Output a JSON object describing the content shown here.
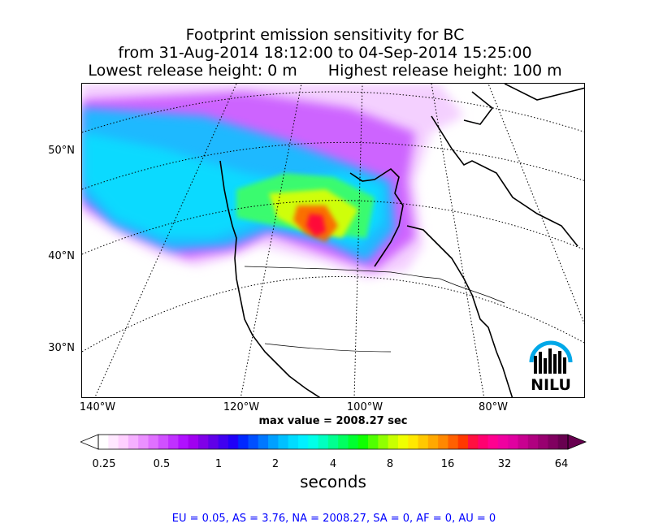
{
  "title": {
    "line1": "Footprint emission sensitivity for BC",
    "line2": "from 31-Aug-2014 18:12:00 to 04-Sep-2014 15:25:00",
    "line3_left": "Lowest release height: 0 m",
    "line3_right": "Highest release height: 100 m"
  },
  "map": {
    "lat_labels": [
      "50°N",
      "40°N",
      "30°N"
    ],
    "lon_labels": [
      "140°W",
      "120°W",
      "100°W",
      "80°W"
    ],
    "logo_text": "NILU",
    "logo_color": "#00a8e8"
  },
  "max_value_text": "max value = 2008.27 sec",
  "colorbar": {
    "tick_labels": [
      "0.25",
      "0.5",
      "1",
      "2",
      "4",
      "8",
      "16",
      "32",
      "64"
    ],
    "unit_label": "seconds",
    "colors": [
      "#ffffff",
      "#ffe8ff",
      "#ffd0ff",
      "#f5b0ff",
      "#eb90ff",
      "#e070ff",
      "#d050ff",
      "#c030ff",
      "#b010ff",
      "#a000f0",
      "#8000e8",
      "#6000e8",
      "#4000f0",
      "#2000f8",
      "#0028ff",
      "#0050ff",
      "#0078ff",
      "#00a0ff",
      "#00c0ff",
      "#00dcff",
      "#00f0ff",
      "#00ffe8",
      "#00ffc0",
      "#00ff90",
      "#00ff60",
      "#00ff30",
      "#10ff00",
      "#50ff00",
      "#90ff00",
      "#c8ff00",
      "#f0ff00",
      "#ffe800",
      "#ffc800",
      "#ffa800",
      "#ff8800",
      "#ff6000",
      "#ff3800",
      "#ff1040",
      "#ff0070",
      "#ff0090",
      "#f000a0",
      "#e000a0",
      "#c80090",
      "#b00080",
      "#980070",
      "#800060",
      "#680050"
    ]
  },
  "totals_text": "EU = 0.05,  AS = 3.76,  NA = 2008.27,  SA = 0,  AF = 0,  AU = 0",
  "totals_color": "#0000ff"
}
